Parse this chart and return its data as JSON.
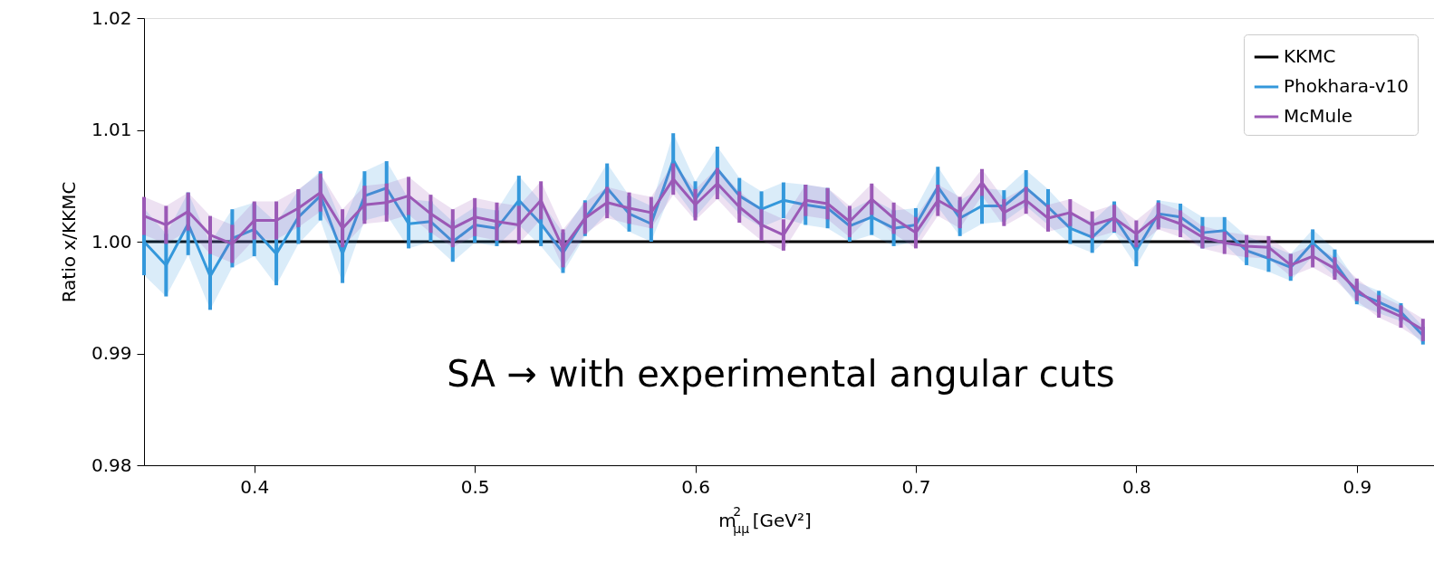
{
  "chart_data": {
    "type": "line",
    "xlabel": "m$^{2}$$_{μμ}$ [GeV²]",
    "ylabel": "Ratio x/KKMC",
    "x": [
      0.35,
      0.36,
      0.37,
      0.38,
      0.39,
      0.4,
      0.41,
      0.42,
      0.43,
      0.44,
      0.45,
      0.46,
      0.47,
      0.48,
      0.49,
      0.5,
      0.51,
      0.52,
      0.53,
      0.54,
      0.55,
      0.56,
      0.57,
      0.58,
      0.59,
      0.6,
      0.61,
      0.62,
      0.63,
      0.64,
      0.65,
      0.66,
      0.67,
      0.68,
      0.69,
      0.7,
      0.71,
      0.72,
      0.73,
      0.74,
      0.75,
      0.76,
      0.77,
      0.78,
      0.79,
      0.8,
      0.81,
      0.82,
      0.83,
      0.84,
      0.85,
      0.86,
      0.87,
      0.88,
      0.89,
      0.9,
      0.91,
      0.92,
      0.93
    ],
    "series": [
      {
        "name": "KKMC",
        "color": "#000000",
        "x": [
          0.35,
          0.935
        ],
        "values": [
          1.0,
          1.0
        ]
      },
      {
        "name": "Phokhara-v10",
        "color": "#3498db",
        "values": [
          1.0,
          0.9979,
          1.0016,
          0.9969,
          1.0003,
          1.0011,
          0.9989,
          1.0022,
          1.0041,
          0.9989,
          1.0041,
          1.0048,
          1.0016,
          1.0018,
          1.0,
          1.0015,
          1.0012,
          1.0037,
          1.0016,
          0.999,
          1.0021,
          1.0048,
          1.0025,
          1.0016,
          1.0073,
          1.0038,
          1.0065,
          1.0041,
          1.0029,
          1.0037,
          1.0033,
          1.003,
          1.0014,
          1.0022,
          1.0012,
          1.0015,
          1.0049,
          1.0021,
          1.0032,
          1.0032,
          1.0048,
          1.0031,
          1.0012,
          1.0004,
          1.0022,
          0.9992,
          1.0025,
          1.0022,
          1.0008,
          1.001,
          0.9992,
          0.9985,
          0.9977,
          0.9999,
          0.9981,
          0.9954,
          0.9946,
          0.9937,
          0.9916
        ],
        "lower": [
          0.997,
          0.9951,
          0.9988,
          0.9939,
          0.9977,
          0.9987,
          0.9961,
          0.9998,
          1.0019,
          0.9963,
          1.0019,
          1.0024,
          0.9994,
          1.0,
          0.9982,
          0.9999,
          0.9996,
          1.0015,
          0.9996,
          0.9972,
          1.0005,
          1.0026,
          1.0009,
          1.0,
          1.0049,
          1.0022,
          1.0045,
          1.0025,
          1.0013,
          1.0021,
          1.0015,
          1.0012,
          1.0,
          1.0006,
          0.9996,
          1.0,
          1.0031,
          1.0005,
          1.0016,
          1.0018,
          1.0032,
          1.0015,
          0.9998,
          0.999,
          1.0008,
          0.9978,
          1.0013,
          1.001,
          0.9994,
          0.9998,
          0.9979,
          0.9973,
          0.9965,
          0.9987,
          0.9969,
          0.9944,
          0.9936,
          0.9929,
          0.9908
        ],
        "upper": [
          1.003,
          1.0007,
          1.0044,
          0.9999,
          1.0029,
          1.0035,
          1.0017,
          1.0046,
          1.0063,
          1.0015,
          1.0063,
          1.0072,
          1.0038,
          1.0036,
          1.0018,
          1.0031,
          1.0028,
          1.0059,
          1.0036,
          1.0008,
          1.0037,
          1.007,
          1.0041,
          1.0032,
          1.0097,
          1.0054,
          1.0085,
          1.0057,
          1.0045,
          1.0053,
          1.0051,
          1.0048,
          1.0028,
          1.0038,
          1.0028,
          1.003,
          1.0067,
          1.0037,
          1.0048,
          1.0046,
          1.0064,
          1.0047,
          1.0026,
          1.0018,
          1.0036,
          1.0006,
          1.0037,
          1.0034,
          1.0022,
          1.0022,
          1.0005,
          0.9997,
          0.9989,
          1.0011,
          0.9993,
          0.9964,
          0.9956,
          0.9945,
          0.9924
        ],
        "errors": [
          0.003,
          0.0028,
          0.0028,
          0.003,
          0.0026,
          0.0024,
          0.0028,
          0.0024,
          0.0022,
          0.0026,
          0.0022,
          0.0024,
          0.0022,
          0.0018,
          0.0018,
          0.0016,
          0.0016,
          0.0022,
          0.002,
          0.0018,
          0.0016,
          0.0022,
          0.0016,
          0.0016,
          0.0024,
          0.0016,
          0.002,
          0.0016,
          0.0016,
          0.0016,
          0.0018,
          0.0018,
          0.0014,
          0.0016,
          0.0016,
          0.0015,
          0.0018,
          0.0016,
          0.0016,
          0.0014,
          0.0016,
          0.0016,
          0.0014,
          0.0014,
          0.0014,
          0.0014,
          0.0012,
          0.0012,
          0.0014,
          0.0012,
          0.0013,
          0.0012,
          0.0012,
          0.0012,
          0.0012,
          0.001,
          0.001,
          0.0008,
          0.0008
        ]
      },
      {
        "name": "McMule",
        "color": "#9b59b6",
        "values": [
          1.0023,
          1.0015,
          1.0027,
          1.0006,
          0.9998,
          1.0019,
          1.0019,
          1.003,
          1.0044,
          1.0012,
          1.0033,
          1.0035,
          1.0041,
          1.0025,
          1.0012,
          1.0022,
          1.0018,
          1.0015,
          1.0037,
          0.9994,
          1.0021,
          1.0035,
          1.003,
          1.0026,
          1.0056,
          1.0033,
          1.0052,
          1.0031,
          1.0015,
          1.0006,
          1.0037,
          1.0034,
          1.0018,
          1.0038,
          1.0021,
          1.0008,
          1.0037,
          1.0026,
          1.0053,
          1.0026,
          1.0037,
          1.0021,
          1.0026,
          1.0015,
          1.0021,
          1.0007,
          1.0023,
          1.0016,
          1.0004,
          0.9999,
          0.9996,
          0.9995,
          0.9979,
          0.9987,
          0.9976,
          0.9957,
          0.9942,
          0.9933,
          0.9921
        ],
        "lower": [
          1.0006,
          0.9998,
          1.001,
          0.9989,
          0.9981,
          1.0002,
          1.0002,
          1.0013,
          1.0027,
          0.9995,
          1.0016,
          1.0018,
          1.0024,
          1.0008,
          0.9995,
          1.0005,
          1.0001,
          0.9998,
          1.002,
          0.9977,
          1.0007,
          1.0021,
          1.0016,
          1.0012,
          1.0042,
          1.0019,
          1.0038,
          1.0017,
          1.0001,
          0.9992,
          1.0023,
          1.002,
          1.0004,
          1.0024,
          1.0007,
          0.9994,
          1.0023,
          1.0012,
          1.0041,
          1.0014,
          1.0025,
          1.0009,
          1.0014,
          1.0003,
          1.0009,
          0.9995,
          1.0011,
          1.0004,
          0.9994,
          0.9989,
          0.9986,
          0.9985,
          0.9969,
          0.9977,
          0.9966,
          0.9947,
          0.9932,
          0.9923,
          0.9911
        ],
        "upper": [
          1.004,
          1.0032,
          1.0044,
          1.0023,
          1.0015,
          1.0036,
          1.0036,
          1.0047,
          1.0061,
          1.0029,
          1.005,
          1.0052,
          1.0058,
          1.0042,
          1.0029,
          1.0039,
          1.0035,
          1.0032,
          1.0054,
          1.0011,
          1.0035,
          1.0049,
          1.0044,
          1.004,
          1.007,
          1.0047,
          1.0066,
          1.0045,
          1.0029,
          1.002,
          1.0051,
          1.0048,
          1.0032,
          1.0052,
          1.0035,
          1.0022,
          1.0051,
          1.004,
          1.0065,
          1.0038,
          1.0049,
          1.0033,
          1.0038,
          1.0027,
          1.0033,
          1.0019,
          1.0035,
          1.0028,
          1.0014,
          1.0009,
          1.0006,
          1.0005,
          0.9989,
          0.9997,
          0.9986,
          0.9967,
          0.9952,
          0.9943,
          0.9931
        ],
        "errors": [
          0.0017,
          0.0017,
          0.0017,
          0.0017,
          0.0017,
          0.0017,
          0.0017,
          0.0017,
          0.0017,
          0.0017,
          0.0017,
          0.0017,
          0.0017,
          0.0017,
          0.0017,
          0.0017,
          0.0017,
          0.0017,
          0.0017,
          0.0017,
          0.0014,
          0.0014,
          0.0014,
          0.0014,
          0.0014,
          0.0014,
          0.0014,
          0.0014,
          0.0014,
          0.0014,
          0.0014,
          0.0014,
          0.0014,
          0.0014,
          0.0014,
          0.0014,
          0.0014,
          0.0014,
          0.0012,
          0.0012,
          0.0012,
          0.0012,
          0.0012,
          0.0012,
          0.0012,
          0.0012,
          0.0012,
          0.0012,
          0.001,
          0.001,
          0.001,
          0.001,
          0.001,
          0.001,
          0.001,
          0.001,
          0.001,
          0.001,
          0.001
        ]
      }
    ],
    "xlim": [
      0.35,
      0.935
    ],
    "ylim": [
      0.98,
      1.02
    ],
    "xticks": [
      0.4,
      0.5,
      0.6,
      0.7,
      0.8,
      0.9
    ],
    "yticks": [
      0.98,
      0.99,
      {
        "value": 1.0,
        "label": "1.00"
      },
      1.01,
      1.02
    ],
    "annotations": [
      "SA → with experimental angular cuts"
    ],
    "legend": "top right",
    "grid": false,
    "marker": "none",
    "line_style": "solid"
  }
}
